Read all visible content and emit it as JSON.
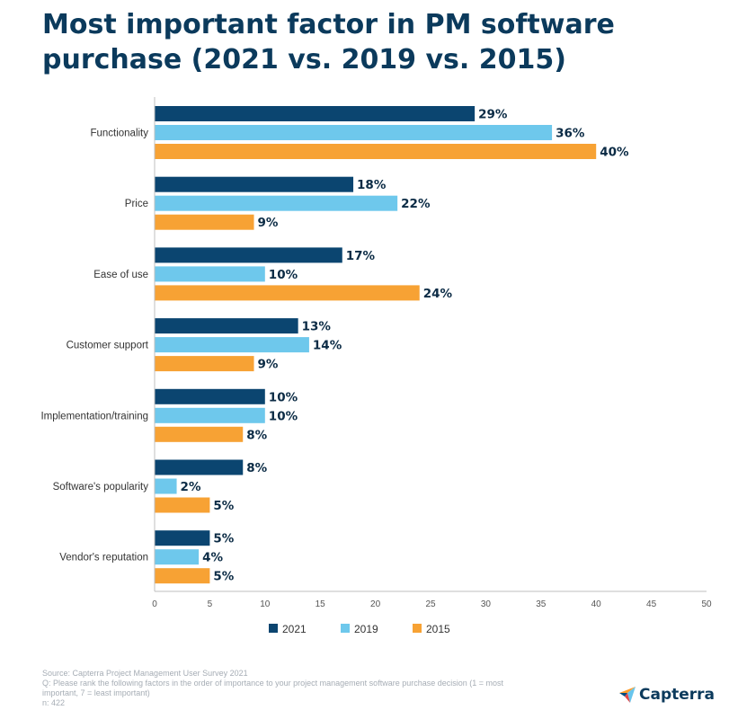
{
  "title": "Most important factor in PM software purchase (2021 vs. 2019 vs. 2015)",
  "chart_data": {
    "type": "bar",
    "orientation": "horizontal",
    "title": "Most important factor in PM software purchase (2021 vs. 2019 vs. 2015)",
    "categories": [
      "Functionality",
      "Price",
      "Ease of use",
      "Customer support",
      "Implementation/training",
      "Software's popularity",
      "Vendor's reputation"
    ],
    "series": [
      {
        "name": "2021",
        "color": "#0b4570",
        "values": [
          29,
          18,
          17,
          13,
          10,
          8,
          5
        ]
      },
      {
        "name": "2019",
        "color": "#6ec8ec",
        "values": [
          36,
          22,
          10,
          14,
          10,
          2,
          4
        ]
      },
      {
        "name": "2015",
        "color": "#f7a234",
        "values": [
          40,
          9,
          24,
          9,
          8,
          5,
          5
        ]
      }
    ],
    "value_suffix": "%",
    "xlim": [
      0,
      50
    ],
    "xticks": [
      0,
      5,
      10,
      15,
      20,
      25,
      30,
      35,
      40,
      45,
      50
    ],
    "grid": false,
    "legend_position": "bottom"
  },
  "footer": {
    "source": "Source: Capterra Project Management User Survey 2021",
    "question": "Q: Please rank the following factors in the order of importance to your project management software purchase decision (1 = most important, 7 = least important)",
    "n": "n: 422"
  },
  "brand": {
    "name": "Capterra",
    "icon": "capterra-logo-icon"
  }
}
